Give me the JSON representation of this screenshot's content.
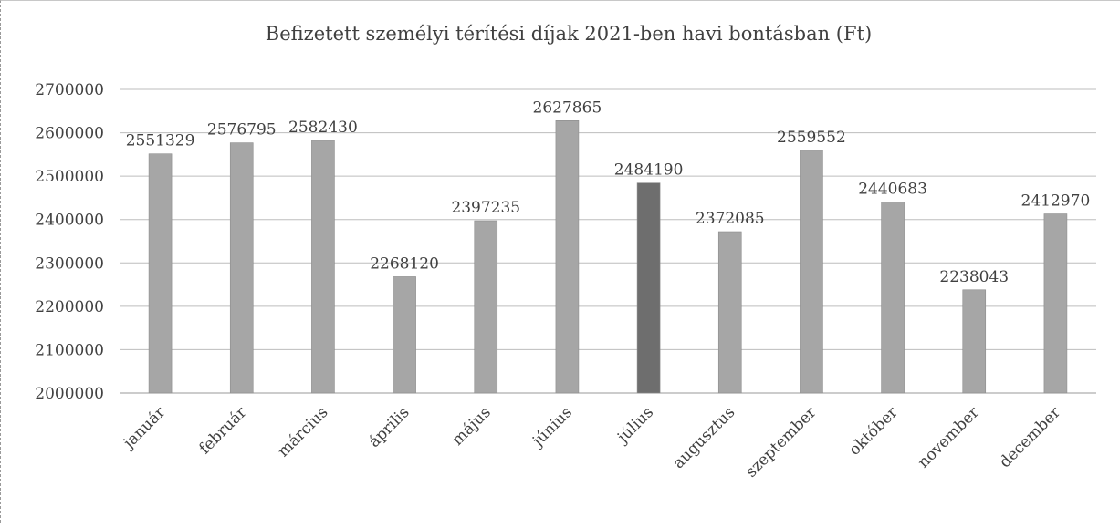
{
  "chart_data": {
    "type": "bar",
    "title": "Befizetett személyi térítési díjak 2021-ben havi bontásban (Ft)",
    "xlabel": "",
    "ylabel": "",
    "categories": [
      "január",
      "február",
      "március",
      "április",
      "május",
      "június",
      "július",
      "augusztus",
      "szeptember",
      "október",
      "november",
      "december"
    ],
    "values": [
      2551329,
      2576795,
      2582430,
      2268120,
      2397235,
      2627865,
      2484190,
      2372085,
      2559552,
      2440683,
      2238043,
      2412970
    ],
    "value_labels": [
      "2551329",
      "2576795",
      "2582430",
      "2268120",
      "2397235",
      "2627865",
      "2484190",
      "2372085",
      "2559552",
      "2440683",
      "2238043",
      "2412970"
    ],
    "ylim": [
      2000000,
      2700000
    ],
    "yticks": [
      2000000,
      2100000,
      2200000,
      2300000,
      2400000,
      2500000,
      2600000,
      2700000
    ],
    "ytick_labels": [
      "2000000",
      "2100000",
      "2200000",
      "2300000",
      "2400000",
      "2500000",
      "2600000",
      "2700000"
    ],
    "grid": true,
    "legend": "none",
    "colors": {
      "bar": "#a6a6a6",
      "bar_edge": "#8c8c8c",
      "highlight_bar": "#6e6e6e",
      "highlight_index": 6
    }
  }
}
